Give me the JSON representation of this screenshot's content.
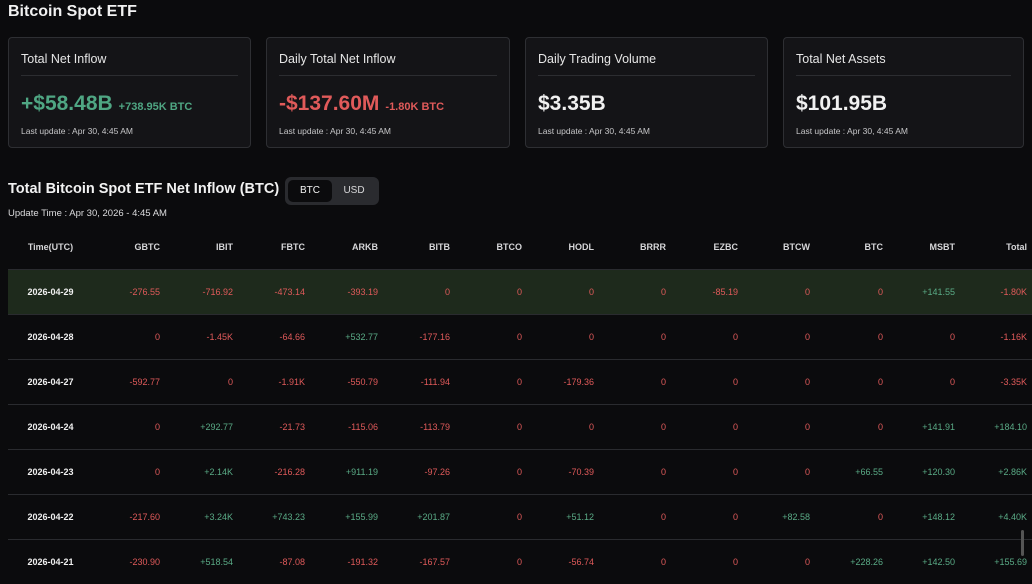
{
  "page_title": "Bitcoin Spot ETF",
  "cards": [
    {
      "title": "Total Net Inflow",
      "value": "+$58.48B",
      "sub": "+738.95K BTC",
      "tone": "green",
      "update": "Last update : Apr 30, 4:45 AM"
    },
    {
      "title": "Daily Total Net Inflow",
      "value": "-$137.60M",
      "sub": "-1.80K BTC",
      "tone": "red",
      "update": "Last update : Apr 30, 4:45 AM"
    },
    {
      "title": "Daily Trading Volume",
      "value": "$3.35B",
      "sub": "",
      "tone": "white",
      "update": "Last update : Apr 30, 4:45 AM"
    },
    {
      "title": "Total Net Assets",
      "value": "$101.95B",
      "sub": "",
      "tone": "white",
      "update": "Last update : Apr 30, 4:45 AM"
    }
  ],
  "section_title": "Total Bitcoin Spot ETF Net Inflow (BTC)",
  "toggle": {
    "btc": "BTC",
    "usd": "USD",
    "active": "BTC"
  },
  "update_time": "Update Time : Apr 30, 2026 - 4:45 AM",
  "colors": {
    "positive": "#5aab86",
    "negative": "#e05a5a",
    "highlight_row": "#1e2a1c"
  },
  "table": {
    "columns": [
      "Time(UTC)",
      "GBTC",
      "IBIT",
      "FBTC",
      "ARKB",
      "BITB",
      "BTCO",
      "HODL",
      "BRRR",
      "EZBC",
      "BTCW",
      "BTC",
      "MSBT",
      "Total"
    ],
    "rows": [
      {
        "cells": [
          "2026-04-29",
          "-276.55",
          "-716.92",
          "-473.14",
          "-393.19",
          "0",
          "0",
          "0",
          "0",
          "-85.19",
          "0",
          "0",
          "+141.55",
          "-1.80K"
        ],
        "highlight": true
      },
      {
        "cells": [
          "2026-04-28",
          "0",
          "-1.45K",
          "-64.66",
          "+532.77",
          "-177.16",
          "0",
          "0",
          "0",
          "0",
          "0",
          "0",
          "0",
          "-1.16K"
        ]
      },
      {
        "cells": [
          "2026-04-27",
          "-592.77",
          "0",
          "-1.91K",
          "-550.79",
          "-111.94",
          "0",
          "-179.36",
          "0",
          "0",
          "0",
          "0",
          "0",
          "-3.35K"
        ]
      },
      {
        "cells": [
          "2026-04-24",
          "0",
          "+292.77",
          "-21.73",
          "-115.06",
          "-113.79",
          "0",
          "0",
          "0",
          "0",
          "0",
          "0",
          "+141.91",
          "+184.10"
        ]
      },
      {
        "cells": [
          "2026-04-23",
          "0",
          "+2.14K",
          "-216.28",
          "+911.19",
          "-97.26",
          "0",
          "-70.39",
          "0",
          "0",
          "0",
          "+66.55",
          "+120.30",
          "+2.86K"
        ]
      },
      {
        "cells": [
          "2026-04-22",
          "-217.60",
          "+3.24K",
          "+743.23",
          "+155.99",
          "+201.87",
          "0",
          "+51.12",
          "0",
          "0",
          "+82.58",
          "0",
          "+148.12",
          "+4.40K"
        ]
      },
      {
        "cells": [
          "2026-04-21",
          "-230.90",
          "+518.54",
          "-87.08",
          "-191.32",
          "-167.57",
          "0",
          "-56.74",
          "0",
          "0",
          "0",
          "+228.26",
          "+142.50",
          "+155.69"
        ]
      }
    ]
  }
}
